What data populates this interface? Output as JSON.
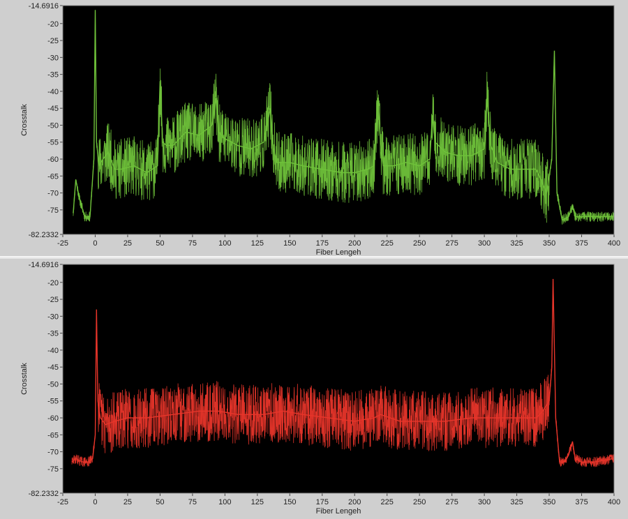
{
  "chart_data": [
    {
      "type": "line",
      "title": "",
      "xlabel": "Fiber Lengeh",
      "ylabel": "Crosstalk",
      "xlim": [
        -25,
        400
      ],
      "ylim": [
        -82.2332,
        -14.6916
      ],
      "xticks": [
        -25,
        0,
        25,
        50,
        75,
        100,
        125,
        150,
        175,
        200,
        225,
        250,
        275,
        300,
        325,
        350,
        375,
        400
      ],
      "yticks": [
        -14.6916,
        -20,
        -25,
        -30,
        -35,
        -40,
        -45,
        -50,
        -55,
        -60,
        -65,
        -70,
        -75,
        -82.2332
      ],
      "grid": false,
      "color": "#6fc23a",
      "background": "#000000",
      "series": [
        {
          "name": "",
          "x": [
            -17,
            -15,
            -12,
            -8,
            -4,
            -1,
            0,
            1,
            3,
            6,
            10,
            15,
            20,
            30,
            40,
            48,
            50,
            52,
            55,
            60,
            70,
            80,
            90,
            93,
            95,
            100,
            110,
            120,
            130,
            135,
            137,
            140,
            150,
            160,
            175,
            190,
            200,
            210,
            215,
            218,
            220,
            222,
            230,
            240,
            250,
            258,
            260,
            262,
            270,
            280,
            290,
            300,
            302,
            305,
            310,
            320,
            330,
            340,
            348,
            352,
            354,
            356,
            360,
            365,
            368,
            370,
            380,
            390,
            400
          ],
          "y": [
            -76,
            -66,
            -72,
            -77,
            -77,
            -60,
            -16,
            -55,
            -62,
            -60,
            -58,
            -63,
            -63,
            -62,
            -64,
            -62,
            -37,
            -55,
            -56,
            -56,
            -52,
            -53,
            -50,
            -42,
            -52,
            -54,
            -56,
            -57,
            -55,
            -45,
            -56,
            -61,
            -61,
            -62,
            -63,
            -64,
            -64,
            -63,
            -62,
            -42,
            -55,
            -62,
            -62,
            -61,
            -62,
            -60,
            -47,
            -55,
            -58,
            -59,
            -59,
            -57,
            -42,
            -56,
            -61,
            -63,
            -63,
            -63,
            -70,
            -60,
            -28,
            -70,
            -78,
            -77,
            -74,
            -77,
            -77,
            -77,
            -77
          ]
        }
      ]
    },
    {
      "type": "line",
      "title": "",
      "xlabel": "Fiber Lengeh",
      "ylabel": "Crosstalk",
      "xlim": [
        -25,
        400
      ],
      "ylim": [
        -82.2332,
        -14.6916
      ],
      "xticks": [
        -25,
        0,
        25,
        50,
        75,
        100,
        125,
        150,
        175,
        200,
        225,
        250,
        275,
        300,
        325,
        350,
        375,
        400
      ],
      "yticks": [
        -14.6916,
        -20,
        -25,
        -30,
        -35,
        -40,
        -45,
        -50,
        -55,
        -60,
        -65,
        -70,
        -75,
        -82.2332
      ],
      "grid": false,
      "color": "#e8352a",
      "background": "#000000",
      "series": [
        {
          "name": "",
          "x": [
            -18,
            -15,
            -10,
            -5,
            -2,
            0,
            1,
            2,
            4,
            8,
            15,
            25,
            40,
            60,
            80,
            95,
            110,
            130,
            145,
            160,
            180,
            200,
            215,
            220,
            235,
            250,
            270,
            290,
            300,
            310,
            325,
            340,
            345,
            350,
            352,
            353,
            355,
            358,
            362,
            365,
            368,
            370,
            375,
            385,
            400
          ],
          "y": [
            -73,
            -72,
            -73,
            -73,
            -72,
            -65,
            -28,
            -55,
            -60,
            -62,
            -61,
            -60,
            -60,
            -59,
            -58,
            -58,
            -59,
            -59,
            -58,
            -59,
            -60,
            -61,
            -60,
            -59,
            -61,
            -61,
            -61,
            -60,
            -60,
            -60,
            -60,
            -60,
            -58,
            -55,
            -45,
            -19,
            -60,
            -73,
            -73,
            -71,
            -67,
            -72,
            -73,
            -73,
            -72
          ]
        }
      ]
    }
  ]
}
